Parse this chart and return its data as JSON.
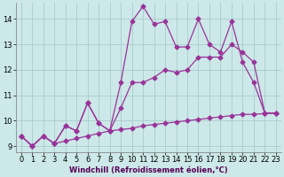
{
  "background_color": "#cce8e8",
  "grid_color": "#aacccc",
  "line_color": "#993399",
  "xlabel": "Windchill (Refroidissement éolien,°C)",
  "xlim_min": -0.5,
  "xlim_max": 23.5,
  "ylim_min": 8.75,
  "ylim_max": 14.65,
  "yticks": [
    9,
    10,
    11,
    12,
    13,
    14
  ],
  "xticks": [
    0,
    1,
    2,
    3,
    4,
    5,
    6,
    7,
    8,
    9,
    10,
    11,
    12,
    13,
    14,
    15,
    16,
    17,
    18,
    19,
    20,
    21,
    22,
    23
  ],
  "line1_y": [
    9.4,
    9.0,
    9.4,
    9.1,
    9.2,
    9.3,
    9.4,
    9.5,
    9.6,
    9.65,
    9.7,
    9.8,
    9.85,
    9.9,
    9.95,
    10.0,
    10.05,
    10.1,
    10.15,
    10.2,
    10.25,
    10.25,
    10.28,
    10.3
  ],
  "line2_y": [
    9.4,
    9.0,
    9.4,
    9.1,
    9.8,
    9.6,
    10.7,
    9.9,
    9.6,
    10.5,
    11.5,
    11.5,
    11.7,
    12.0,
    11.9,
    12.0,
    12.5,
    12.5,
    12.5,
    13.0,
    12.7,
    12.3,
    10.3,
    10.3
  ],
  "line3_y": [
    9.4,
    9.0,
    9.4,
    9.1,
    9.8,
    9.6,
    10.7,
    9.9,
    9.6,
    11.5,
    13.9,
    14.5,
    13.8,
    13.9,
    12.9,
    12.9,
    14.0,
    13.0,
    12.7,
    13.9,
    12.3,
    11.5,
    10.3,
    10.3
  ],
  "lw": 0.9,
  "ms": 2.5,
  "tick_fontsize": 6.0,
  "xlabel_fontsize": 6.0
}
